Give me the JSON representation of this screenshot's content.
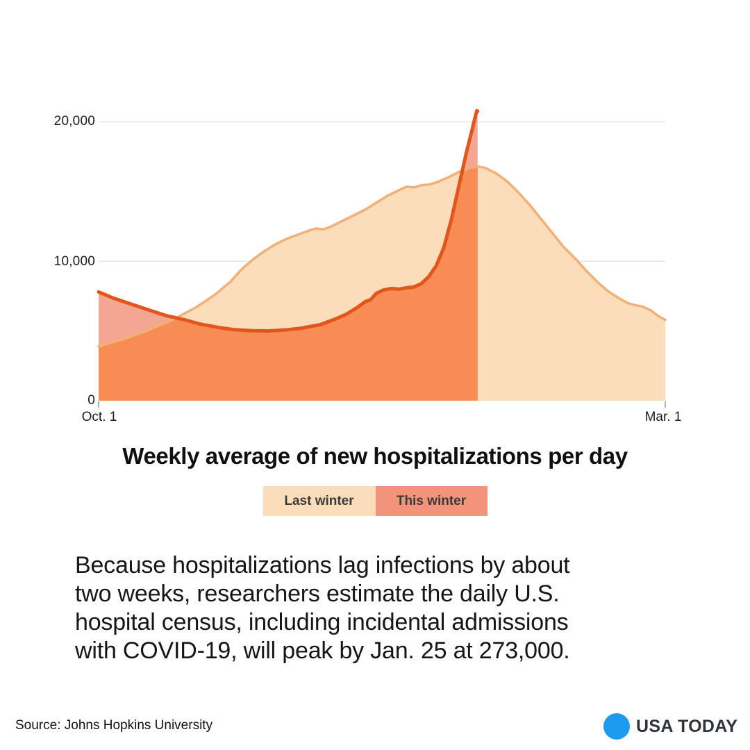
{
  "header": {
    "title": "Weekly average of new hospitalizations per day"
  },
  "legend": {
    "items": [
      {
        "label": "Last winter",
        "color": "#FBDDBA"
      },
      {
        "label": "This winter",
        "color": "#F2937C"
      }
    ]
  },
  "body": {
    "lines": [
      "Because hospitalizations lag infections by about",
      "two weeks, researchers estimate the daily U.S.",
      "hospital census, including incidental admissions",
      "with COVID-19, will peak by Jan. 25 at 273,000."
    ]
  },
  "footer": {
    "source": "Source: Johns Hopkins University",
    "brand": "USA TODAY",
    "brand_dot_color": "#1b9af0"
  },
  "colors": {
    "gridline": "#e4e5e6",
    "tick": "#abb2b8",
    "last_winter_fill": "#FBDDBA",
    "last_winter_stroke": "#F0B077",
    "this_winter_fill_over_white": "#F4A692",
    "this_winter_fill_overlap": "#F78C55",
    "this_winter_stroke": "#E2561D"
  },
  "chart_data": {
    "type": "area",
    "title": "Weekly average of new hospitalizations per day",
    "x_axis": {
      "unit": "days since Oct. 1",
      "range": [
        0,
        151
      ],
      "ticks": [
        "Oct. 1",
        "Mar. 1"
      ],
      "tick_days": [
        0,
        151
      ]
    },
    "y_axis": {
      "range": [
        0,
        21000
      ],
      "ticks": [
        "0",
        "10,000",
        "20,000"
      ],
      "tick_values": [
        0,
        10000,
        20000
      ],
      "grid_values": [
        10000,
        20000
      ]
    },
    "legend_position": "below-title",
    "grid": "horizontal-only",
    "series": [
      {
        "name": "Last winter",
        "points": [
          [
            0,
            3900
          ],
          [
            7,
            4450
          ],
          [
            14,
            5150
          ],
          [
            20,
            5850
          ],
          [
            26,
            6700
          ],
          [
            31,
            7600
          ],
          [
            35,
            8500
          ],
          [
            38,
            9400
          ],
          [
            41,
            10100
          ],
          [
            44,
            10700
          ],
          [
            47,
            11200
          ],
          [
            50,
            11600
          ],
          [
            53,
            11900
          ],
          [
            56,
            12200
          ],
          [
            58,
            12350
          ],
          [
            60,
            12300
          ],
          [
            62,
            12500
          ],
          [
            65,
            12900
          ],
          [
            68,
            13300
          ],
          [
            71,
            13700
          ],
          [
            74,
            14200
          ],
          [
            77,
            14700
          ],
          [
            80,
            15100
          ],
          [
            82,
            15350
          ],
          [
            84,
            15300
          ],
          [
            86,
            15450
          ],
          [
            88,
            15500
          ],
          [
            90,
            15650
          ],
          [
            93,
            16000
          ],
          [
            96,
            16400
          ],
          [
            99,
            16700
          ],
          [
            101,
            16800
          ],
          [
            103,
            16700
          ],
          [
            106,
            16300
          ],
          [
            109,
            15700
          ],
          [
            112,
            14900
          ],
          [
            115,
            14000
          ],
          [
            118,
            13000
          ],
          [
            121,
            12000
          ],
          [
            124,
            11000
          ],
          [
            127,
            10200
          ],
          [
            130,
            9300
          ],
          [
            133,
            8500
          ],
          [
            136,
            7800
          ],
          [
            139,
            7300
          ],
          [
            141,
            7000
          ],
          [
            143,
            6850
          ],
          [
            145,
            6750
          ],
          [
            147,
            6500
          ],
          [
            149,
            6100
          ],
          [
            151,
            5800
          ]
        ]
      },
      {
        "name": "This winter",
        "end_day": 101,
        "points": [
          [
            0,
            7800
          ],
          [
            4,
            7350
          ],
          [
            9,
            6900
          ],
          [
            14,
            6450
          ],
          [
            18,
            6100
          ],
          [
            23,
            5800
          ],
          [
            27,
            5500
          ],
          [
            32,
            5250
          ],
          [
            36,
            5100
          ],
          [
            41,
            5020
          ],
          [
            45,
            5000
          ],
          [
            50,
            5080
          ],
          [
            54,
            5200
          ],
          [
            59,
            5450
          ],
          [
            63,
            5850
          ],
          [
            66,
            6200
          ],
          [
            69,
            6700
          ],
          [
            71,
            7100
          ],
          [
            72.5,
            7250
          ],
          [
            74,
            7700
          ],
          [
            76,
            7950
          ],
          [
            78,
            8050
          ],
          [
            80,
            8000
          ],
          [
            82,
            8100
          ],
          [
            84,
            8150
          ],
          [
            86,
            8400
          ],
          [
            88,
            8900
          ],
          [
            90,
            9700
          ],
          [
            92,
            11000
          ],
          [
            94,
            13000
          ],
          [
            96,
            15400
          ],
          [
            98,
            17800
          ],
          [
            99.5,
            19400
          ],
          [
            100.3,
            20300
          ],
          [
            100.8,
            20800
          ],
          [
            101,
            20750
          ]
        ]
      }
    ]
  }
}
